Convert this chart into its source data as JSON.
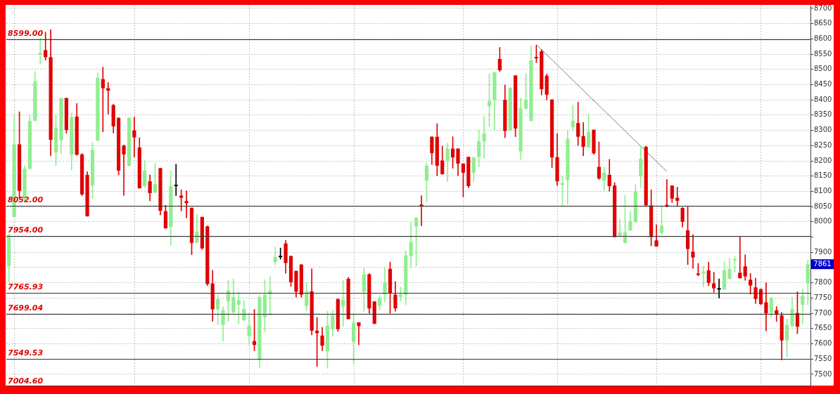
{
  "chart_data": {
    "type": "candlestick",
    "categories": [
      null,
      null,
      null,
      null,
      null,
      null,
      null,
      null,
      null,
      null,
      null,
      null,
      null,
      null,
      null,
      null,
      null,
      null,
      null,
      null,
      null,
      null,
      null,
      null,
      null,
      null,
      null,
      null,
      null,
      null,
      null,
      null,
      null,
      null,
      null,
      null,
      null,
      null,
      null,
      null,
      null,
      null,
      null,
      null,
      null,
      null,
      null,
      null,
      null,
      null,
      null,
      null,
      null,
      null,
      null,
      null,
      null,
      null,
      null,
      null,
      null,
      null,
      null,
      null,
      null,
      null,
      null,
      null,
      null,
      null,
      null,
      null,
      null,
      null,
      null,
      null,
      null,
      null,
      null,
      null,
      null,
      null,
      null,
      null,
      null,
      null,
      null,
      null,
      null,
      null,
      null,
      null,
      null,
      null,
      null,
      null,
      null,
      null,
      null,
      null,
      null,
      null,
      null,
      null,
      null,
      null,
      null,
      null,
      null,
      null,
      null,
      null,
      null,
      null,
      null,
      null,
      null,
      null,
      null,
      null,
      null,
      null,
      null,
      null,
      null,
      null,
      null,
      null,
      null,
      null,
      null,
      null,
      null,
      null,
      null,
      null,
      null,
      null,
      null,
      null,
      null,
      null,
      null,
      null,
      null,
      null,
      null,
      null,
      null,
      null,
      null,
      null,
      null,
      null
    ],
    "ohlc": [
      [
        7855,
        7960,
        7802,
        7957
      ],
      [
        8016,
        8349,
        8014,
        8254
      ],
      [
        8254,
        8361,
        8077,
        8102
      ],
      [
        8073,
        8183,
        8069,
        8174
      ],
      [
        8174,
        8349,
        8172,
        8331
      ],
      [
        8331,
        8493,
        8331,
        8460
      ],
      [
        8548,
        8604,
        8517,
        8554
      ],
      [
        8563,
        8622,
        8530,
        8540
      ],
      [
        8540,
        8630,
        8217,
        8269
      ],
      [
        8228,
        8349,
        8184,
        8309
      ],
      [
        8267,
        8406,
        8224,
        8406
      ],
      [
        8406,
        8406,
        8291,
        8301
      ],
      [
        8221,
        8357,
        8170,
        8343
      ],
      [
        8345,
        8388,
        8218,
        8220
      ],
      [
        8221,
        8224,
        8086,
        8090
      ],
      [
        8154,
        8164,
        8018,
        8018
      ],
      [
        8119,
        8260,
        8077,
        8236
      ],
      [
        8267,
        8489,
        8265,
        8472
      ],
      [
        8468,
        8507,
        8295,
        8438
      ],
      [
        8438,
        8457,
        8353,
        8430
      ],
      [
        8383,
        8385,
        8291,
        8313
      ],
      [
        8341,
        8341,
        8154,
        8168
      ],
      [
        8250,
        8252,
        8087,
        8221
      ],
      [
        8184,
        8343,
        8182,
        8341
      ],
      [
        8300,
        8343,
        8213,
        8277
      ],
      [
        8244,
        8276,
        8110,
        8110
      ],
      [
        8117,
        8201,
        8112,
        8168
      ],
      [
        8133,
        8154,
        8069,
        8094
      ],
      [
        8096,
        8193,
        8095,
        8124
      ],
      [
        8176,
        8176,
        8022,
        8036
      ],
      [
        8035,
        8054,
        7978,
        7979
      ],
      [
        7983,
        8168,
        7923,
        8117
      ],
      [
        8117,
        8189,
        8086,
        8117
      ],
      [
        8086,
        8105,
        8036,
        8079
      ],
      [
        8068,
        8102,
        8013,
        8061
      ],
      [
        8046,
        8046,
        7892,
        7931
      ],
      [
        7932,
        8024,
        7930,
        7968
      ],
      [
        8016,
        8016,
        7909,
        7913
      ],
      [
        7985,
        7987,
        7791,
        7796
      ],
      [
        7798,
        7841,
        7674,
        7713
      ],
      [
        7713,
        7761,
        7662,
        7747
      ],
      [
        7662,
        7722,
        7609,
        7710
      ],
      [
        7739,
        7808,
        7673,
        7775
      ],
      [
        7703,
        7813,
        7701,
        7753
      ],
      [
        7728,
        7769,
        7666,
        7743
      ],
      [
        7677,
        7742,
        7676,
        7714
      ],
      [
        7625,
        7700,
        7596,
        7660
      ],
      [
        7609,
        7713,
        7577,
        7596
      ],
      [
        7547,
        7759,
        7522,
        7753
      ],
      [
        7687,
        7810,
        7640,
        7760
      ],
      [
        7763,
        7820,
        7693,
        7775
      ],
      [
        7868,
        7917,
        7859,
        7884
      ],
      [
        7884,
        7914,
        7877,
        7884
      ],
      [
        7929,
        7939,
        7831,
        7865
      ],
      [
        7888,
        7888,
        7788,
        7802
      ],
      [
        7839,
        7839,
        7753,
        7771
      ],
      [
        7860,
        7860,
        7753,
        7761
      ],
      [
        7724,
        7800,
        7709,
        7772
      ],
      [
        7772,
        7846,
        7629,
        7643
      ],
      [
        7643,
        7687,
        7525,
        7635
      ],
      [
        7627,
        7654,
        7577,
        7594
      ],
      [
        7576,
        7707,
        7520,
        7660
      ],
      [
        7648,
        7709,
        7625,
        7693
      ],
      [
        7747,
        7747,
        7641,
        7648
      ],
      [
        7722,
        7808,
        7657,
        7744
      ],
      [
        7813,
        7818,
        7681,
        7681
      ],
      [
        7606,
        7700,
        7535,
        7670
      ],
      [
        7670,
        7670,
        7596,
        7658
      ],
      [
        7771,
        7849,
        7707,
        7828
      ],
      [
        7828,
        7830,
        7700,
        7716
      ],
      [
        7739,
        7739,
        7665,
        7666
      ],
      [
        7724,
        7759,
        7711,
        7749
      ],
      [
        7761,
        7849,
        7737,
        7800
      ],
      [
        7846,
        7868,
        7700,
        7767
      ],
      [
        7761,
        7804,
        7707,
        7716
      ],
      [
        7754,
        7786,
        7740,
        7761
      ],
      [
        7761,
        7905,
        7728,
        7890
      ],
      [
        7888,
        7999,
        7851,
        7934
      ],
      [
        7985,
        8014,
        7855,
        8013
      ],
      [
        8054,
        8086,
        7987,
        8052
      ],
      [
        8135,
        8193,
        8065,
        8184
      ],
      [
        8279,
        8279,
        8188,
        8225
      ],
      [
        8279,
        8322,
        8151,
        8184
      ],
      [
        8201,
        8248,
        8156,
        8156
      ],
      [
        8201,
        8258,
        8131,
        8240
      ],
      [
        8240,
        8279,
        8176,
        8211
      ],
      [
        8240,
        8240,
        8151,
        8191
      ],
      [
        8191,
        8191,
        8082,
        8161
      ],
      [
        8213,
        8213,
        8112,
        8117
      ],
      [
        8161,
        8212,
        8131,
        8211
      ],
      [
        8213,
        8300,
        8180,
        8264
      ],
      [
        8264,
        8346,
        8209,
        8289
      ],
      [
        8379,
        8485,
        8312,
        8396
      ],
      [
        8398,
        8492,
        8300,
        8490
      ],
      [
        8534,
        8572,
        8493,
        8497
      ],
      [
        8400,
        8449,
        8276,
        8298
      ],
      [
        8300,
        8441,
        8298,
        8439
      ],
      [
        8480,
        8480,
        8279,
        8306
      ],
      [
        8231,
        8406,
        8205,
        8372
      ],
      [
        8371,
        8487,
        8370,
        8400
      ],
      [
        8331,
        8577,
        8330,
        8530
      ],
      [
        8540,
        8579,
        8522,
        8536
      ],
      [
        8559,
        8565,
        8416,
        8435
      ],
      [
        8479,
        8485,
        8400,
        8417
      ],
      [
        8401,
        8401,
        8178,
        8211
      ],
      [
        8212,
        8289,
        8119,
        8133
      ],
      [
        8121,
        8150,
        8051,
        8127
      ],
      [
        8137,
        8300,
        8059,
        8271
      ],
      [
        8310,
        8383,
        8298,
        8331
      ],
      [
        8324,
        8392,
        8250,
        8279
      ],
      [
        8281,
        8326,
        8217,
        8246
      ],
      [
        8244,
        8353,
        8243,
        8295
      ],
      [
        8302,
        8302,
        8221,
        8225
      ],
      [
        8180,
        8262,
        8139,
        8142
      ],
      [
        8135,
        8178,
        8102,
        8161
      ],
      [
        8154,
        8205,
        8100,
        8117
      ],
      [
        8119,
        8129,
        7950,
        7950
      ],
      [
        7954,
        8009,
        7953,
        7965
      ],
      [
        7931,
        8087,
        7930,
        7965
      ],
      [
        7972,
        8034,
        7971,
        8000
      ],
      [
        8000,
        8124,
        7998,
        8100
      ],
      [
        8149,
        8248,
        8112,
        8207
      ],
      [
        8246,
        8248,
        8054,
        8054
      ],
      [
        8054,
        8105,
        7921,
        7950
      ],
      [
        7939,
        7991,
        7919,
        7919
      ],
      [
        7964,
        8051,
        7958,
        7987
      ],
      [
        8054,
        8139,
        8049,
        8051
      ],
      [
        8119,
        8119,
        8063,
        8076
      ],
      [
        8079,
        8114,
        8053,
        8069
      ],
      [
        8046,
        8046,
        7983,
        8000
      ],
      [
        7972,
        8051,
        7860,
        7911
      ],
      [
        7902,
        7958,
        7847,
        7883
      ],
      [
        7830,
        7864,
        7823,
        7826
      ],
      [
        7830,
        7854,
        7786,
        7837
      ],
      [
        7841,
        7868,
        7790,
        7800
      ],
      [
        7798,
        7835,
        7769,
        7782
      ],
      [
        7778,
        7813,
        7750,
        7778
      ],
      [
        7778,
        7868,
        7777,
        7841
      ],
      [
        7813,
        7880,
        7812,
        7845
      ],
      [
        7874,
        7887,
        7835,
        7878
      ],
      [
        7833,
        7950,
        7815,
        7815
      ],
      [
        7854,
        7892,
        7808,
        7821
      ],
      [
        7810,
        7831,
        7763,
        7791
      ],
      [
        7785,
        7815,
        7732,
        7747
      ],
      [
        7779,
        7781,
        7728,
        7730
      ],
      [
        7736,
        7800,
        7642,
        7700
      ],
      [
        7701,
        7752,
        7687,
        7751
      ],
      [
        7710,
        7722,
        7673,
        7698
      ],
      [
        7693,
        7703,
        7547,
        7611
      ],
      [
        7611,
        7681,
        7557,
        7662
      ],
      [
        7658,
        7753,
        7657,
        7714
      ],
      [
        7701,
        7771,
        7633,
        7656
      ],
      [
        7728,
        7780,
        7666,
        7758
      ],
      [
        7798,
        7874,
        7728,
        7861
      ]
    ],
    "colors": [
      "#90ee90",
      "#90ee90",
      "#e00000",
      "#90ee90",
      "#90ee90",
      "#90ee90",
      "#90ee90",
      "#e00000",
      "#e00000",
      "#90ee90",
      "#90ee90",
      "#e00000",
      "#90ee90",
      "#e00000",
      "#e00000",
      "#e00000",
      "#90ee90",
      "#90ee90",
      "#e00000",
      "#e00000",
      "#e00000",
      "#e00000",
      "#e00000",
      "#90ee90",
      "#e00000",
      "#e00000",
      "#90ee90",
      "#e00000",
      "#90ee90",
      "#e00000",
      "#e00000",
      "#90ee90",
      "#000000",
      "#e00000",
      "#e00000",
      "#e00000",
      "#90ee90",
      "#e00000",
      "#e00000",
      "#e00000",
      "#90ee90",
      "#90ee90",
      "#90ee90",
      "#90ee90",
      "#90ee90",
      "#90ee90",
      "#90ee90",
      "#e00000",
      "#90ee90",
      "#90ee90",
      "#90ee90",
      "#90ee90",
      "#000000",
      "#e00000",
      "#e00000",
      "#e00000",
      "#e00000",
      "#90ee90",
      "#e00000",
      "#e00000",
      "#e00000",
      "#90ee90",
      "#90ee90",
      "#e00000",
      "#90ee90",
      "#e00000",
      "#90ee90",
      "#e00000",
      "#90ee90",
      "#e00000",
      "#e00000",
      "#90ee90",
      "#90ee90",
      "#e00000",
      "#e00000",
      "#90ee90",
      "#90ee90",
      "#90ee90",
      "#90ee90",
      "#e00000",
      "#90ee90",
      "#e00000",
      "#e00000",
      "#e00000",
      "#90ee90",
      "#e00000",
      "#e00000",
      "#e00000",
      "#e00000",
      "#90ee90",
      "#90ee90",
      "#90ee90",
      "#90ee90",
      "#90ee90",
      "#e00000",
      "#e00000",
      "#90ee90",
      "#e00000",
      "#90ee90",
      "#90ee90",
      "#90ee90",
      "#e00000",
      "#e00000",
      "#e00000",
      "#e00000",
      "#e00000",
      "#90ee90",
      "#90ee90",
      "#90ee90",
      "#e00000",
      "#e00000",
      "#90ee90",
      "#e00000",
      "#e00000",
      "#90ee90",
      "#e00000",
      "#e00000",
      "#90ee90",
      "#90ee90",
      "#90ee90",
      "#90ee90",
      "#90ee90",
      "#e00000",
      "#e00000",
      "#e00000",
      "#90ee90",
      "#e00000",
      "#e00000",
      "#e00000",
      "#e00000",
      "#e00000",
      "#e00000",
      "#e00000",
      "#90ee90",
      "#e00000",
      "#e00000",
      "#000000",
      "#90ee90",
      "#90ee90",
      "#90ee90",
      "#e00000",
      "#e00000",
      "#e00000",
      "#e00000",
      "#e00000",
      "#e00000",
      "#90ee90",
      "#e00000",
      "#e00000",
      "#90ee90",
      "#90ee90",
      "#e00000",
      "#90ee90",
      "#90ee90"
    ],
    "series": [
      {
        "type": "line",
        "color": "#808080",
        "values": [
          null,
          null,
          null,
          null,
          null,
          null,
          null,
          null,
          null,
          null,
          null,
          null,
          null,
          null,
          null,
          null,
          null,
          null,
          null,
          null,
          null,
          null,
          null,
          null,
          null,
          null,
          null,
          null,
          null,
          null,
          null,
          null,
          null,
          null,
          null,
          null,
          null,
          null,
          null,
          null,
          null,
          null,
          null,
          null,
          null,
          null,
          null,
          null,
          null,
          null,
          null,
          null,
          null,
          null,
          null,
          null,
          null,
          null,
          null,
          null,
          null,
          null,
          null,
          null,
          null,
          null,
          null,
          null,
          null,
          null,
          null,
          null,
          null,
          null,
          null,
          null,
          null,
          null,
          null,
          null,
          null,
          null,
          null,
          null,
          null,
          null,
          null,
          null,
          null,
          null,
          null,
          null,
          null,
          null,
          null,
          null,
          null,
          null,
          null,
          null,
          null,
          8581,
          null,
          null,
          null,
          null,
          null,
          null,
          null,
          null,
          null,
          null,
          null,
          null,
          null,
          null,
          null,
          null,
          null,
          null,
          null,
          null,
          null,
          null,
          null,
          null,
          8165,
          null,
          null,
          null,
          null,
          null,
          null,
          null,
          null,
          null,
          null,
          null,
          null,
          null,
          null,
          null,
          null,
          null,
          null,
          null,
          null,
          null,
          null,
          null,
          null,
          null,
          null,
          null
        ]
      }
    ],
    "ylim": [
      7463,
      8709
    ],
    "yticks": [
      7500,
      7550,
      7600,
      7650,
      7700,
      7750,
      7800,
      {
        "value": 7850,
        "label": null
      },
      7900,
      {
        "value": 7950,
        "label": null
      },
      8000,
      8050,
      8100,
      8150,
      8200,
      8250,
      8300,
      8350,
      8400,
      8450,
      8500,
      8550,
      8600,
      8650,
      8700
    ],
    "tick_labels": "y",
    "grid": true,
    "ref_lines": [
      {
        "axis": "y",
        "value": 8599,
        "label": "8599.00",
        "color": "#303030"
      },
      {
        "axis": "y",
        "value": 8052,
        "label": "8052.00",
        "color": "#303030"
      },
      {
        "axis": "y",
        "value": 7954,
        "label": "7954.00",
        "color": "#303030"
      },
      {
        "axis": "y",
        "value": 7765.93,
        "label": "7765.93",
        "color": "#303030"
      },
      {
        "axis": "y",
        "value": 7699.04,
        "label": "7699.04",
        "color": "#303030"
      },
      {
        "axis": "y",
        "value": 7549.53,
        "label": "7549.53",
        "color": "#303030"
      }
    ],
    "annotations": [
      "7004.60",
      {
        "text": "7861",
        "y": 7861
      }
    ]
  }
}
